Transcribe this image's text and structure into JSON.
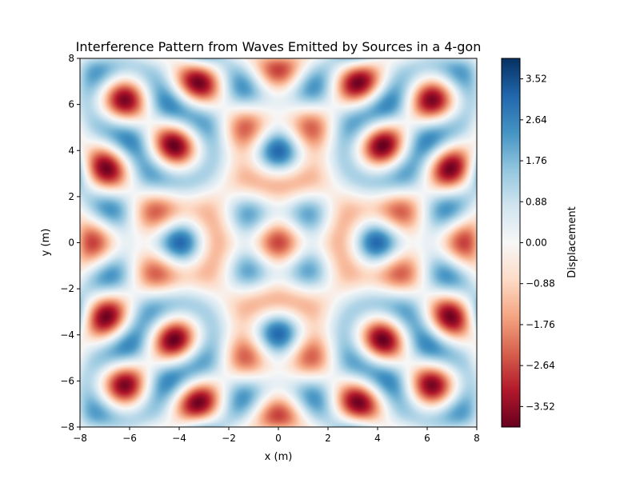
{
  "chart_data": {
    "type": "heatmap",
    "title": "Interference Pattern from Waves Emitted by Sources in a 4-gon",
    "xlabel": "x (m)",
    "ylabel": "y (m)",
    "xlim": [
      -8,
      8
    ],
    "ylim": [
      -8,
      8
    ],
    "x_ticks": [
      -8,
      -6,
      -4,
      -2,
      0,
      2,
      4,
      6,
      8
    ],
    "y_ticks": [
      -8,
      -6,
      -4,
      -2,
      0,
      2,
      4,
      6,
      8
    ],
    "x_tick_labels": [
      "−8",
      "−6",
      "−4",
      "−2",
      "0",
      "2",
      "4",
      "6",
      "8"
    ],
    "y_tick_labels": [
      "−8",
      "−6",
      "−4",
      "−2",
      "0",
      "2",
      "4",
      "6",
      "8"
    ],
    "grid": false,
    "colormap": "RdBu",
    "colorbar": {
      "label": "Displacement",
      "range": [
        -3.96,
        3.96
      ],
      "ticks": [
        -3.52,
        -2.64,
        -1.76,
        -0.88,
        0.0,
        0.88,
        1.76,
        2.64,
        3.52
      ],
      "tick_labels": [
        "−3.52",
        "−2.64",
        "−1.76",
        "−0.88",
        "0.00",
        "0.88",
        "1.76",
        "2.64",
        "3.52"
      ]
    },
    "sources": {
      "count": 4,
      "wavenumber": 2.44
    },
    "colors": {
      "low": "#67001f",
      "mid": "#f7f7f7",
      "high": "#053061"
    }
  }
}
